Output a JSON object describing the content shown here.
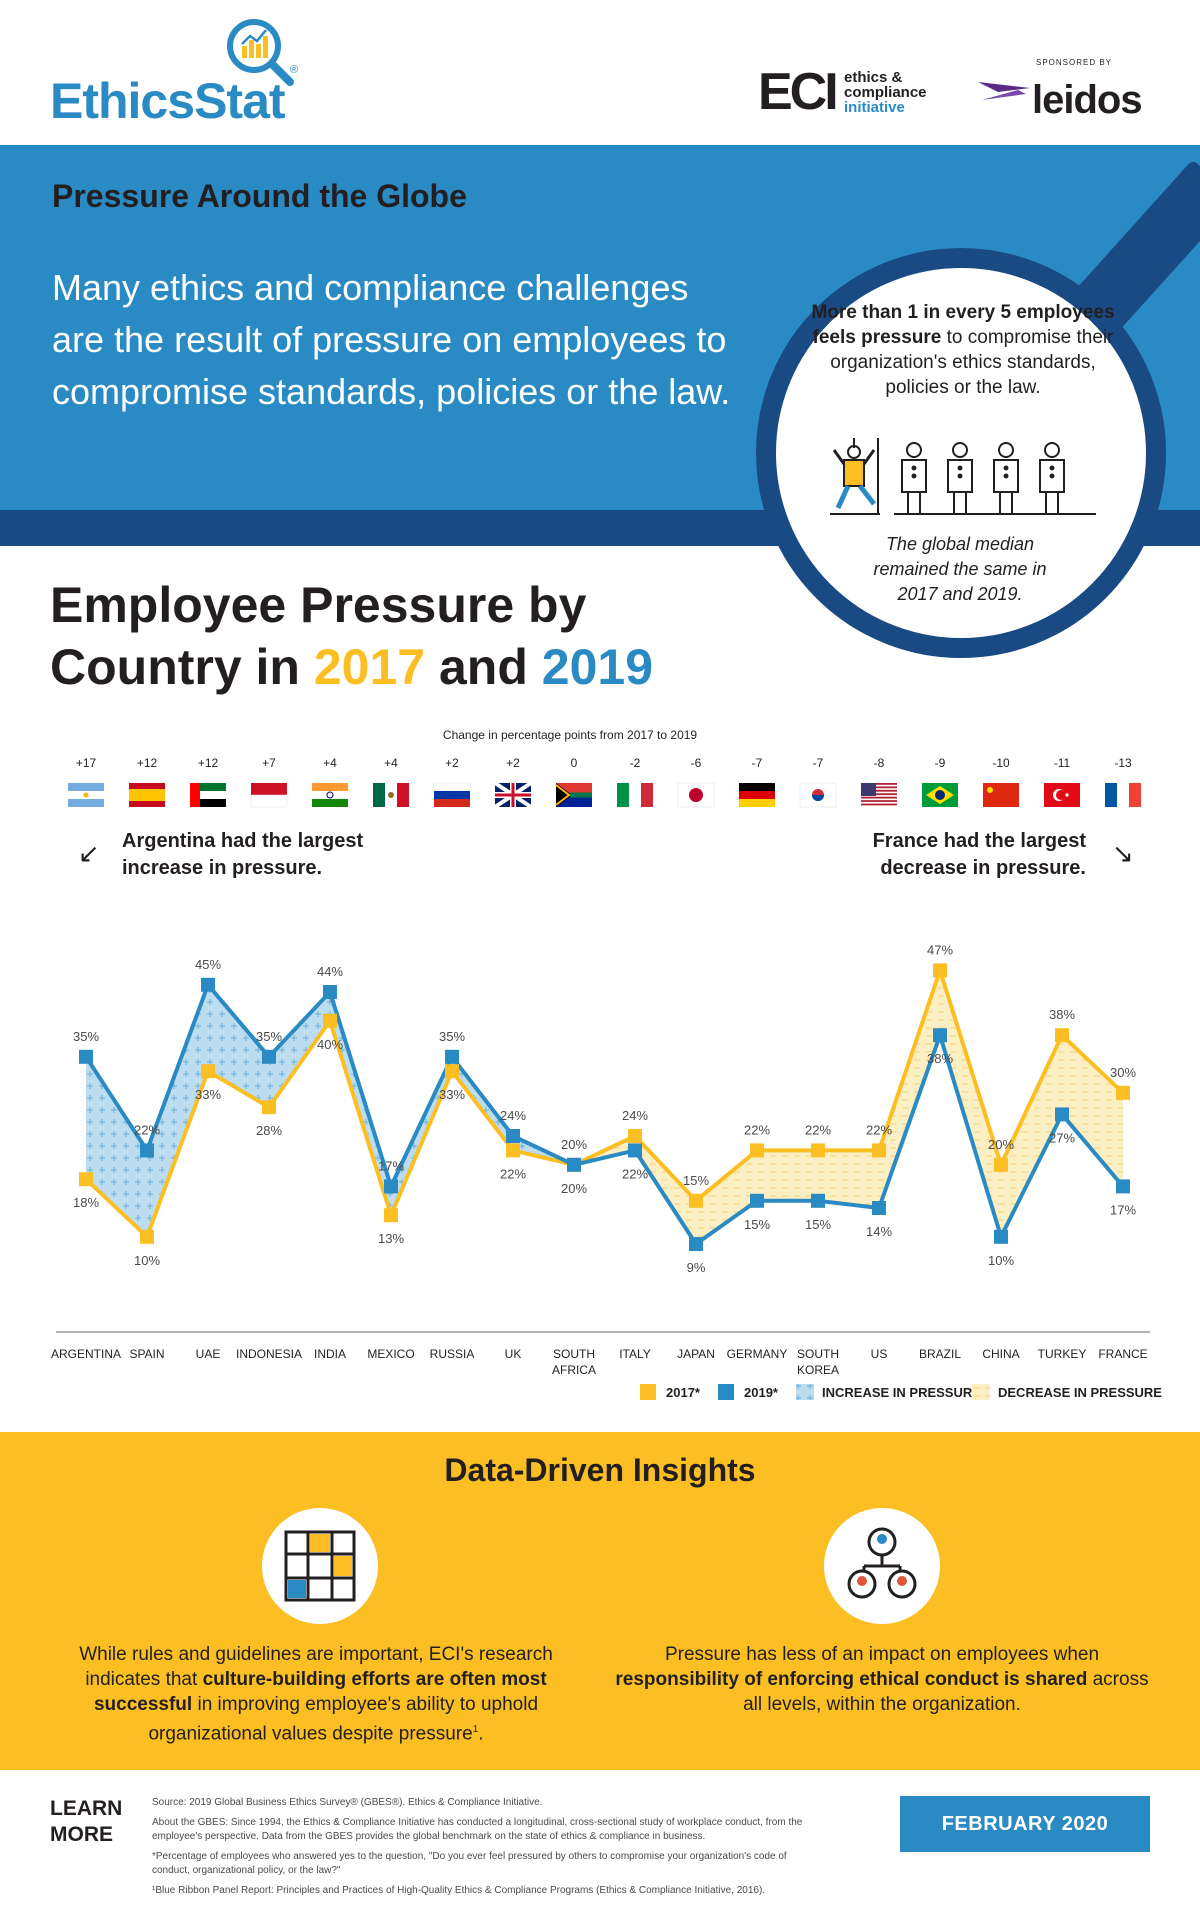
{
  "header": {
    "brand": {
      "word_a": "Ethics",
      "word_b": "Stat",
      "reg": "®"
    },
    "eci": {
      "abbr": "ECI",
      "line1": "ethics &",
      "line2": "compliance",
      "line3": "initiative"
    },
    "sponsor": {
      "label": "SPONSORED BY",
      "name": "leidos"
    }
  },
  "hero": {
    "title": "Pressure Around the Globe",
    "subtitle": "Many ethics and compliance challenges are the result of pressure on employees to compromise standards, policies or the law.",
    "callout_bold_a": "More than 1 in every 5 employees feels pressure",
    "callout_rest": " to compromise their organization's ethics standards, policies or the law.",
    "callout_note": "The global median remained the same in 2017 and 2019."
  },
  "section": {
    "title_a": "Employee Pressure by",
    "title_b": "Country in ",
    "year_a": "2017",
    "title_and": " and ",
    "year_b": "2019"
  },
  "annotations": {
    "left": "Argentina had the largest increase in pressure.",
    "right": "France had the largest decrease in pressure."
  },
  "chart_data": {
    "type": "line",
    "change_title": "Change in percentage points from 2017 to 2019",
    "categories": [
      "ARGENTINA",
      "SPAIN",
      "UAE",
      "INDONESIA",
      "INDIA",
      "MEXICO",
      "RUSSIA",
      "UK",
      "SOUTH AFRICA",
      "ITALY",
      "JAPAN",
      "GERMANY",
      "SOUTH KOREA",
      "US",
      "BRAZIL",
      "CHINA",
      "TURKEY",
      "FRANCE"
    ],
    "change": [
      "+17",
      "+12",
      "+12",
      "+7",
      "+4",
      "+4",
      "+2",
      "+2",
      "0",
      "-2",
      "-6",
      "-7",
      "-7",
      "-8",
      "-9",
      "-10",
      "-11",
      "-13"
    ],
    "series": [
      {
        "name": "2017*",
        "color": "#fbbf24",
        "values": [
          18,
          10,
          33,
          28,
          40,
          13,
          33,
          22,
          20,
          24,
          15,
          22,
          22,
          22,
          47,
          20,
          38,
          30
        ]
      },
      {
        "name": "2019*",
        "color": "#2a8ac4",
        "values": [
          35,
          22,
          45,
          35,
          44,
          17,
          35,
          24,
          20,
          22,
          9,
          15,
          15,
          14,
          38,
          10,
          27,
          17
        ]
      }
    ],
    "legend": [
      {
        "label": "2017*",
        "kind": "swatch",
        "color": "#fbbf24"
      },
      {
        "label": "2019*",
        "kind": "swatch",
        "color": "#2a8ac4"
      },
      {
        "label": "INCREASE IN PRESSURE",
        "kind": "increase"
      },
      {
        "label": "DECREASE IN PRESSURE",
        "kind": "decrease"
      }
    ],
    "legend_position": "bottom-right",
    "fill_increase": "#bcdcf0",
    "fill_decrease": "#fdefc4"
  },
  "insights": {
    "title": "Data-Driven Insights",
    "left_text_a": "While rules and guidelines are important, ECI's research indicates that ",
    "left_bold": "culture-building efforts are often most successful",
    "left_text_b": " in improving employee's ability to uphold organizational values despite pressure",
    "left_sup": "1",
    "left_end": ".",
    "right_text_a": "Pressure has less of an impact on employees when ",
    "right_bold": "responsibility of enforcing ethical conduct is shared",
    "right_text_b": " across all levels, within the organization."
  },
  "footer": {
    "learn": "LEARN MORE",
    "source": "Source: 2019 Global Business Ethics Survey® (GBES®). Ethics & Compliance Initiative.",
    "about": "About the GBES: Since 1994, the Ethics & Compliance Initiative has conducted a longitudinal, cross-sectional study of workplace conduct, from the employee's perspective. Data from the GBES provides the global benchmark on the state of ethics & compliance in business.",
    "note1": "*Percentage of employees who answered yes to the question, \"Do you ever feel pressured by others to compromise your organization's code of conduct, organizational policy, or the law?\"",
    "note2": "¹Blue Ribbon Panel Report: Principles and Practices of High-Quality Ethics & Compliance Programs (Ethics & Compliance Initiative, 2016).",
    "date": "FEBRUARY 2020"
  }
}
